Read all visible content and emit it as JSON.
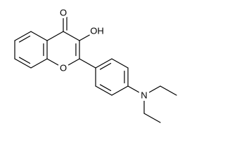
{
  "atoms": [
    {
      "label": "O"
    },
    {
      "label": "OH"
    },
    {
      "label": "O"
    },
    {
      "label": "N"
    }
  ]
}
